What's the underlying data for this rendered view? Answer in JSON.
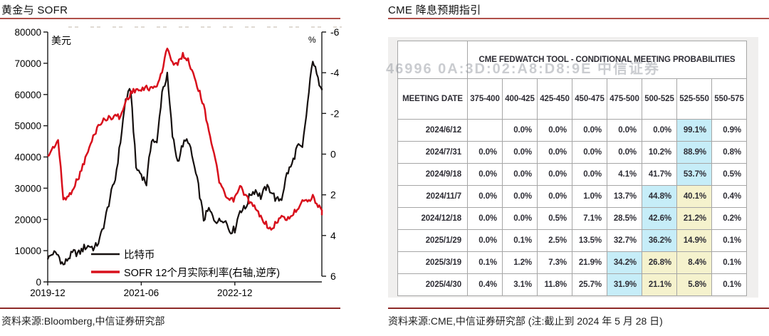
{
  "left_panel": {
    "title": "黄金与 SOFR",
    "source": "资料来源:Bloomberg,中信证券研究部"
  },
  "chart_data": {
    "type": "line",
    "title": "黄金与 SOFR",
    "x_monthly_start": "2019-12",
    "x_tick_labels": [
      "2019-12",
      "2021-06",
      "2022-12"
    ],
    "x_tick_index": [
      0,
      18,
      36
    ],
    "left_axis": {
      "label": "美元",
      "ticks": [
        0,
        10000,
        20000,
        30000,
        40000,
        50000,
        60000,
        70000,
        80000
      ],
      "range": [
        0,
        80000
      ]
    },
    "right_axis": {
      "label": "%",
      "ticks": [
        -6,
        -4,
        -2,
        0,
        2,
        4,
        6
      ],
      "range": [
        -6,
        6
      ],
      "inverted": true
    },
    "grid": false,
    "legend_position": "bottom-inside",
    "series": [
      {
        "name": "比特币",
        "axis": "left",
        "color": "#16100f",
        "values": [
          7200,
          9300,
          8600,
          5300,
          7700,
          9400,
          9100,
          11000,
          11600,
          10700,
          13500,
          19600,
          27000,
          33000,
          45000,
          58500,
          61500,
          36500,
          34500,
          31500,
          46000,
          44000,
          61000,
          66000,
          46800,
          38500,
          44000,
          45500,
          38500,
          30500,
          20000,
          23200,
          20100,
          19400,
          20400,
          16400,
          16800,
          23100,
          23500,
          28200,
          29400,
          27200,
          30200,
          29300,
          26000,
          26800,
          34500,
          37600,
          43300,
          42600,
          57000,
          71500,
          64500,
          62000
        ]
      },
      {
        "name": "SOFR 12个月实际利率(右轴,逆序)",
        "axis": "right",
        "color": "#d8101c",
        "values": [
          0.1,
          -0.3,
          -0.7,
          2.2,
          2.1,
          1.6,
          1.1,
          0.4,
          -0.3,
          -1.0,
          -1.5,
          -1.7,
          -1.8,
          -1.9,
          -1.8,
          -2.6,
          -3.0,
          -3.2,
          -3.1,
          -3.3,
          -3.2,
          -3.4,
          -4.0,
          -5.3,
          -4.5,
          -4.4,
          -4.9,
          -4.6,
          -4.0,
          -3.2,
          -2.4,
          -1.2,
          0.0,
          1.3,
          2.0,
          2.3,
          2.2,
          1.6,
          2.0,
          2.4,
          2.7,
          3.1,
          3.4,
          3.8,
          3.3,
          3.1,
          3.2,
          3.0,
          2.7,
          2.2,
          2.3,
          2.1,
          2.5,
          3.0
        ]
      }
    ]
  },
  "right_panel": {
    "title": "CME 降息预期指引",
    "watermark": "46996  0A:3D:02:A8:D8:9E  中信证券",
    "table": {
      "merged_header": "CME FEDWATCH TOOL - CONDITIONAL MEETING PROBABILITIES",
      "columns": [
        "MEETING DATE",
        "375-400",
        "400-425",
        "425-450",
        "450-475",
        "475-500",
        "500-525",
        "525-550",
        "550-575"
      ],
      "highlight_colors": {
        "c": "#c6edf8",
        "y": "#f5f2cd"
      },
      "rows": [
        {
          "date": "2024/6/12",
          "values": [
            "",
            "0.0%",
            "0.0%",
            "0.0%",
            "0.0%",
            "0.0%",
            "99.1%",
            "0.9%"
          ],
          "marks": [
            "",
            "",
            "",
            "",
            "",
            "",
            "c",
            ""
          ]
        },
        {
          "date": "2024/7/31",
          "values": [
            "0.0%",
            "0.0%",
            "0.0%",
            "0.0%",
            "0.0%",
            "10.2%",
            "88.9%",
            "0.8%"
          ],
          "marks": [
            "",
            "",
            "",
            "",
            "",
            "",
            "c",
            ""
          ]
        },
        {
          "date": "2024/9/18",
          "values": [
            "0.0%",
            "0.0%",
            "0.0%",
            "0.0%",
            "4.1%",
            "41.7%",
            "53.7%",
            "0.5%"
          ],
          "marks": [
            "",
            "",
            "",
            "",
            "",
            "",
            "c",
            ""
          ]
        },
        {
          "date": "2024/11/7",
          "values": [
            "0.0%",
            "0.0%",
            "0.0%",
            "1.0%",
            "13.7%",
            "44.8%",
            "40.1%",
            "0.4%"
          ],
          "marks": [
            "",
            "",
            "",
            "",
            "",
            "c",
            "y",
            ""
          ]
        },
        {
          "date": "2024/12/18",
          "values": [
            "0.0%",
            "0.0%",
            "0.5%",
            "7.1%",
            "28.5%",
            "42.6%",
            "21.2%",
            "0.2%"
          ],
          "marks": [
            "",
            "",
            "",
            "",
            "",
            "c",
            "y",
            ""
          ]
        },
        {
          "date": "2025/1/29",
          "values": [
            "0.0%",
            "0.1%",
            "2.5%",
            "13.5%",
            "32.7%",
            "36.2%",
            "14.9%",
            "0.1%"
          ],
          "marks": [
            "",
            "",
            "",
            "",
            "",
            "c",
            "y",
            ""
          ]
        },
        {
          "date": "2025/3/19",
          "values": [
            "0.1%",
            "1.2%",
            "7.3%",
            "21.9%",
            "34.2%",
            "26.8%",
            "8.4%",
            "0.1%"
          ],
          "marks": [
            "",
            "",
            "",
            "",
            "c",
            "y",
            "y",
            ""
          ]
        },
        {
          "date": "2025/4/30",
          "values": [
            "0.4%",
            "3.1%",
            "11.8%",
            "25.7%",
            "31.9%",
            "21.1%",
            "5.8%",
            "0.1%"
          ],
          "marks": [
            "",
            "",
            "",
            "",
            "c",
            "y",
            "y",
            ""
          ]
        }
      ]
    },
    "source": "资料来源:CME,中信证券研究部 (注:截止到 2024 年 5 月 28 日)"
  }
}
